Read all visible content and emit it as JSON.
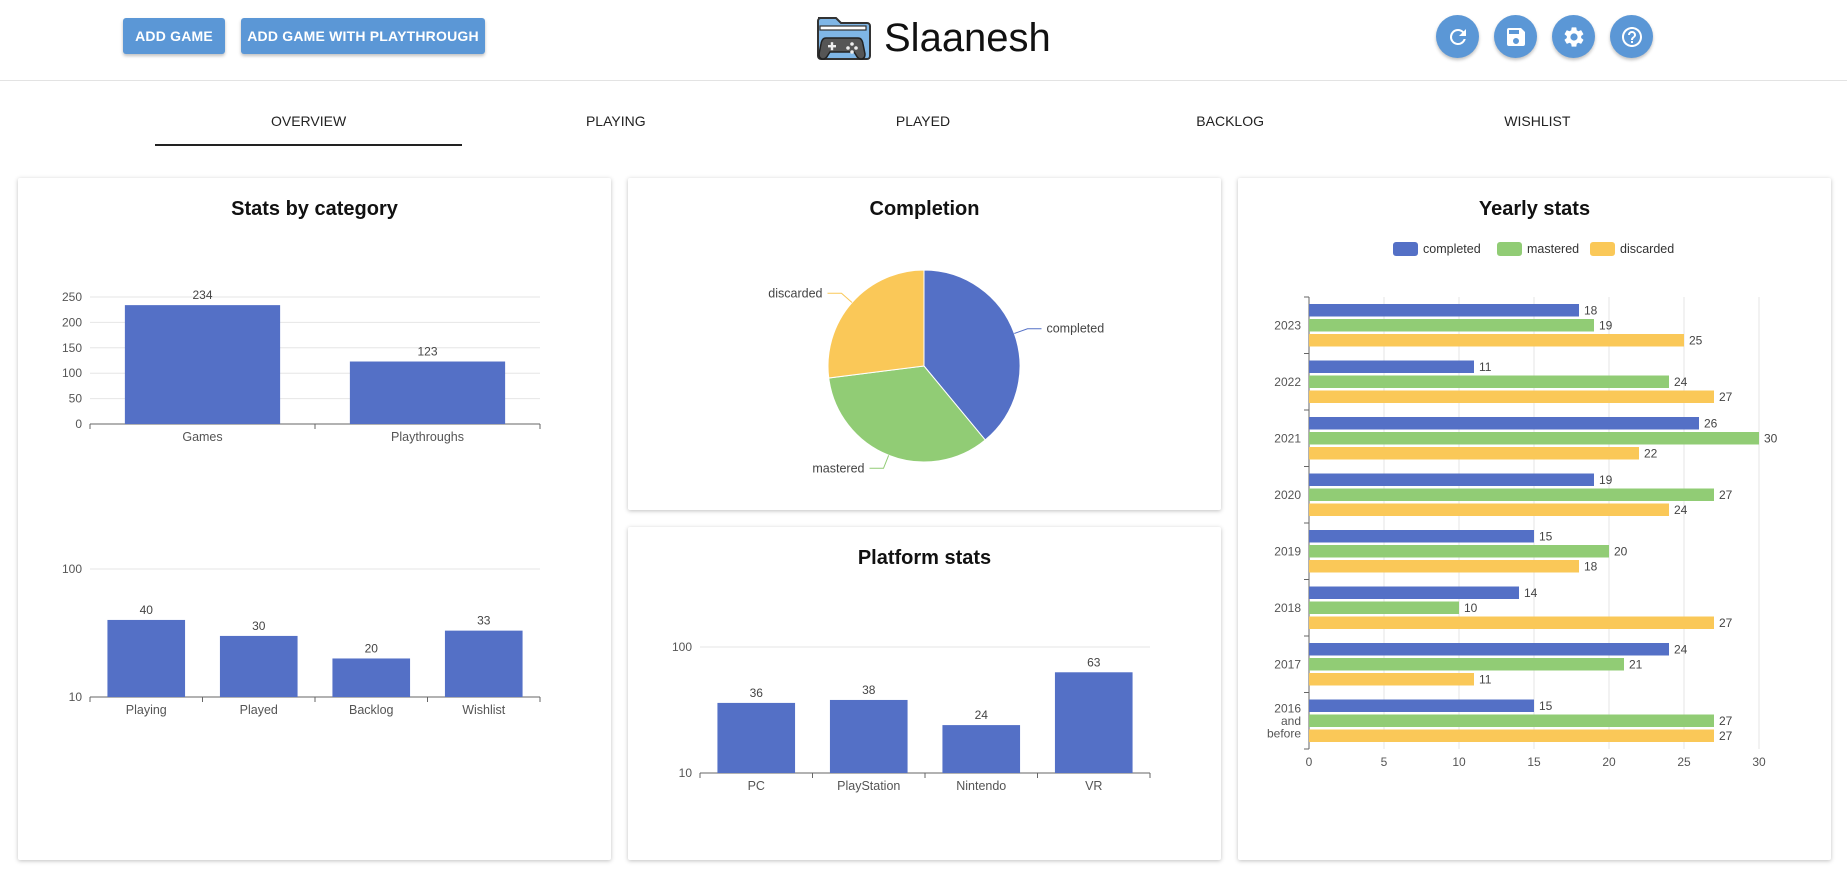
{
  "toolbar": {
    "add_game_label": "ADD GAME",
    "add_game_playthrough_label": "ADD GAME WITH PLAYTHROUGH",
    "icons": [
      "refresh-icon",
      "save-icon",
      "gear-icon",
      "help-icon"
    ]
  },
  "brand": {
    "title": "Slaanesh",
    "logo_icon": "game-folder-icon"
  },
  "tabs": [
    "OVERVIEW",
    "PLAYING",
    "PLAYED",
    "BACKLOG",
    "WISHLIST"
  ],
  "active_tab": "OVERVIEW",
  "colors": {
    "accent": "#5b97d6",
    "blue": "#5470c6",
    "green": "#91cc75",
    "yellow": "#fac858"
  },
  "cards": {
    "stats_by_category": {
      "title": "Stats by category"
    },
    "completion": {
      "title": "Completion"
    },
    "platform_stats": {
      "title": "Platform stats"
    },
    "yearly_stats": {
      "title": "Yearly stats"
    }
  },
  "chart_data": [
    {
      "id": "category_totals",
      "type": "bar",
      "categories": [
        "Games",
        "Playthroughs"
      ],
      "values": [
        234,
        123
      ],
      "ylim": [
        0,
        250
      ],
      "yticks": [
        0,
        50,
        100,
        150,
        200,
        250
      ],
      "grid": true
    },
    {
      "id": "category_lists",
      "type": "bar",
      "scale": "log",
      "categories": [
        "Playing",
        "Played",
        "Backlog",
        "Wishlist"
      ],
      "values": [
        40,
        30,
        20,
        33
      ],
      "ylim": [
        10,
        100
      ],
      "yticks": [
        10,
        100
      ],
      "grid": true
    },
    {
      "id": "completion",
      "type": "pie",
      "labels": [
        "completed",
        "mastered",
        "discarded"
      ],
      "values": [
        39,
        34,
        27
      ]
    },
    {
      "id": "platforms",
      "type": "bar",
      "scale": "log",
      "categories": [
        "PC",
        "PlayStation",
        "Nintendo",
        "VR"
      ],
      "values": [
        36,
        38,
        24,
        63
      ],
      "ylim": [
        10,
        100
      ],
      "yticks": [
        10,
        100
      ],
      "grid": true
    },
    {
      "id": "yearly",
      "type": "bar",
      "orientation": "horizontal",
      "legend": "top",
      "categories": [
        "2023",
        "2022",
        "2021",
        "2020",
        "2019",
        "2018",
        "2017",
        "2016 and before"
      ],
      "series": [
        {
          "name": "completed",
          "values": [
            18,
            11,
            26,
            19,
            15,
            14,
            24,
            15
          ]
        },
        {
          "name": "mastered",
          "values": [
            19,
            24,
            30,
            27,
            20,
            10,
            21,
            27
          ]
        },
        {
          "name": "discarded",
          "values": [
            25,
            27,
            22,
            24,
            18,
            27,
            11,
            27
          ]
        }
      ],
      "xlim": [
        0,
        30
      ],
      "xticks": [
        0,
        5,
        10,
        15,
        20,
        25,
        30
      ],
      "grid": true
    }
  ]
}
